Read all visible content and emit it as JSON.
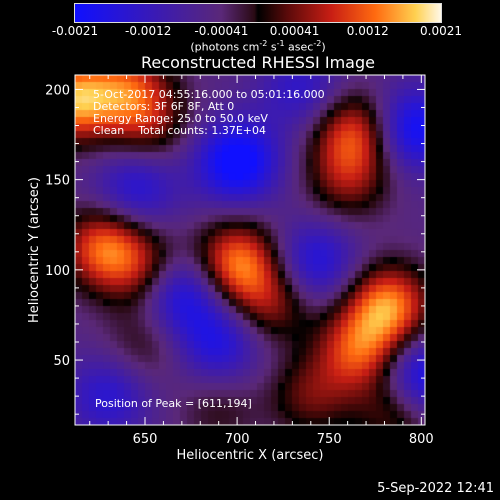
{
  "chart_data": {
    "type": "heatmap",
    "title": "Reconstructed RHESSI Image",
    "xlabel": "Heliocentric X (arcsec)",
    "ylabel": "Heliocentric Y (arcsec)",
    "xlim": [
      612,
      802
    ],
    "ylim": [
      14,
      208
    ],
    "x_ticks": [
      650,
      700,
      750,
      800
    ],
    "y_ticks": [
      50,
      100,
      150,
      200
    ],
    "colorbar": {
      "ticks": [
        "-0.0021",
        "-0.0012",
        "-0.00041",
        "0.00041",
        "0.0012",
        "0.0021"
      ],
      "range": [
        -0.0021,
        0.0021
      ],
      "unit_prefix": "(photons cm",
      "unit_exp1": "-2",
      "unit_mid1": " s",
      "unit_exp2": "-1",
      "unit_mid2": " asec",
      "unit_exp3": "-2",
      "unit_suffix": ")"
    },
    "blobs": [
      {
        "x": 611,
        "y": 194,
        "v": 0.0021
      },
      {
        "x": 641,
        "y": 200,
        "v": 0.0014
      },
      {
        "x": 652,
        "y": 180,
        "v": 0.0009
      },
      {
        "x": 628,
        "y": 112,
        "v": 0.0018
      },
      {
        "x": 652,
        "y": 98,
        "v": 0.0012
      },
      {
        "x": 700,
        "y": 104,
        "v": 0.0019
      },
      {
        "x": 718,
        "y": 82,
        "v": 0.0011
      },
      {
        "x": 782,
        "y": 80,
        "v": 0.002
      },
      {
        "x": 766,
        "y": 55,
        "v": 0.0016
      },
      {
        "x": 740,
        "y": 30,
        "v": 0.0009
      },
      {
        "x": 764,
        "y": 176,
        "v": 0.0016
      },
      {
        "x": 760,
        "y": 150,
        "v": 0.001
      },
      {
        "x": 787,
        "y": 22,
        "v": 0.001
      },
      {
        "x": 650,
        "y": 58,
        "v": 0.0006
      },
      {
        "x": 690,
        "y": 22,
        "v": 0.0005
      },
      {
        "x": 700,
        "y": 160,
        "v": -0.0018
      },
      {
        "x": 668,
        "y": 88,
        "v": -0.0016
      },
      {
        "x": 795,
        "y": 178,
        "v": -0.0016
      },
      {
        "x": 742,
        "y": 104,
        "v": -0.0012
      },
      {
        "x": 645,
        "y": 145,
        "v": -0.0011
      },
      {
        "x": 630,
        "y": 30,
        "v": -0.001
      },
      {
        "x": 800,
        "y": 40,
        "v": -0.0016
      },
      {
        "x": 735,
        "y": 200,
        "v": -0.0009
      },
      {
        "x": 690,
        "y": 60,
        "v": -0.0012
      }
    ]
  },
  "annotations": {
    "time_range": "5-Oct-2017 04:55:16.000 to 05:01:16.000",
    "detectors": "Detectors: 3F 6F 8F, Att 0",
    "energy_range": "Energy Range: 25.0 to 50.0 keV",
    "clean_counts": "Clean    Total counts: 1.37E+04",
    "peak_position": "Position of Peak = [611,194]"
  },
  "footer": {
    "timestamp": "5-Sep-2022 12:41"
  }
}
